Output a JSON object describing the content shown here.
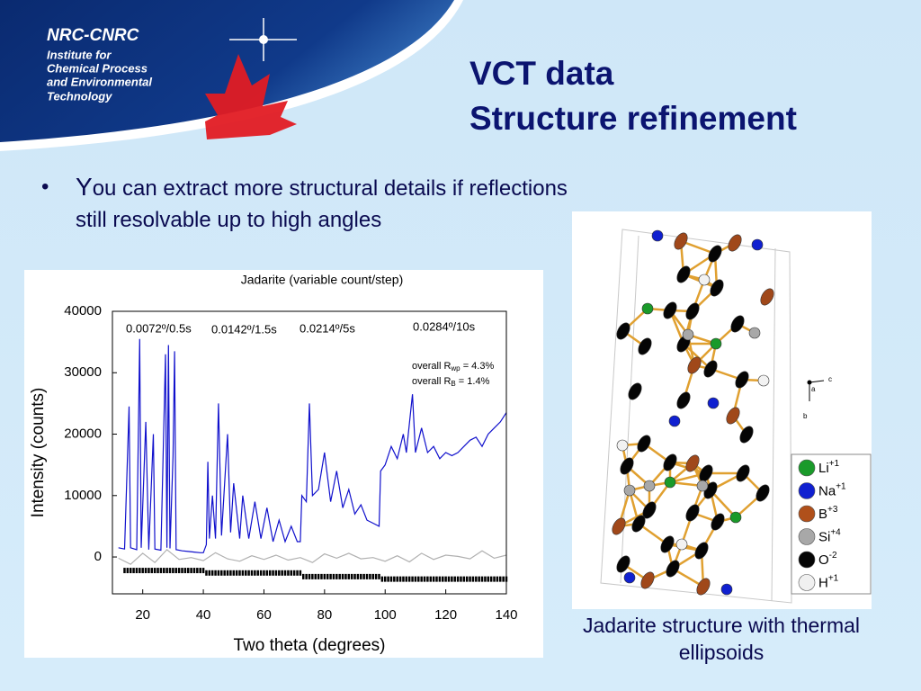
{
  "header": {
    "logo": "NRC-CNRC",
    "institute": [
      "Institute for",
      "Chemical Process",
      "and Environmental",
      "Technology"
    ]
  },
  "title": [
    "VCT data",
    "Structure refinement"
  ],
  "bullets": [
    "You can extract more structural details if reflections still resolvable up to high angles"
  ],
  "chart_data": {
    "type": "line",
    "title": "Jadarite (variable count/step)",
    "xlabel": "Two theta (degrees)",
    "ylabel": "Intensity (counts)",
    "xlim": [
      10,
      140
    ],
    "ylim": [
      -6000,
      40000
    ],
    "xticks": [
      20,
      40,
      60,
      80,
      100,
      120,
      140
    ],
    "yticks": [
      0,
      10000,
      20000,
      30000,
      40000
    ],
    "x": [
      12,
      14,
      15.5,
      16,
      18,
      19,
      19.5,
      21,
      22,
      23.5,
      24,
      26,
      27.5,
      28,
      28.5,
      29,
      30,
      30.5,
      31,
      33,
      35,
      37,
      39,
      40,
      41,
      41.5,
      42,
      43,
      44,
      45,
      46,
      48,
      49,
      50,
      52,
      53,
      55,
      57,
      59,
      61,
      63,
      65,
      67,
      69,
      71,
      72,
      72.5,
      74,
      75,
      76,
      78,
      80,
      82,
      84,
      86,
      88,
      90,
      92,
      94,
      96,
      98,
      98.5,
      100,
      102,
      104,
      106,
      107,
      109,
      110,
      112,
      114,
      116,
      118,
      120,
      122,
      124,
      126,
      128,
      130,
      132,
      134,
      136,
      138,
      140
    ],
    "series": [
      {
        "color": "#1010cc",
        "values": [
          1500,
          1300,
          24500,
          1500,
          1200,
          35500,
          1500,
          22000,
          1200,
          20000,
          1300,
          1100,
          33000,
          1500,
          34500,
          1400,
          16500,
          33500,
          1200,
          1000,
          900,
          800,
          700,
          700,
          2000,
          15500,
          3000,
          10000,
          3000,
          25000,
          3500,
          20000,
          4000,
          12000,
          3000,
          10000,
          3000,
          9000,
          3000,
          8000,
          2500,
          6000,
          2500,
          5000,
          2500,
          2500,
          10000,
          9000,
          25000,
          10000,
          11000,
          17000,
          9000,
          14000,
          8000,
          11000,
          7000,
          8500,
          6000,
          5500,
          5000,
          14000,
          15000,
          18000,
          16000,
          20000,
          17000,
          26500,
          17000,
          21000,
          17000,
          18000,
          16000,
          17000,
          16500,
          17000,
          18000,
          19000,
          19500,
          18000,
          20000,
          21000,
          22000,
          23500
        ]
      }
    ],
    "difference": {
      "color": "#b0b0b0",
      "x": [
        12,
        16,
        20,
        24,
        28,
        32,
        36,
        40,
        44,
        48,
        52,
        56,
        60,
        64,
        68,
        72,
        76,
        80,
        84,
        88,
        92,
        96,
        100,
        104,
        108,
        112,
        116,
        120,
        124,
        128,
        132,
        136,
        140
      ],
      "values": [
        -200,
        -1200,
        600,
        -900,
        1200,
        -400,
        -100,
        -600,
        700,
        -300,
        -700,
        200,
        -400,
        300,
        -500,
        -100,
        -900,
        500,
        -200,
        600,
        -300,
        -100,
        -700,
        200,
        -800,
        600,
        -400,
        300,
        100,
        -300,
        1000,
        -200,
        300
      ]
    },
    "reflections": [
      {
        "y": -2200,
        "x": [
          14,
          15,
          16,
          17,
          18,
          19,
          20,
          21,
          22,
          23,
          24,
          25,
          26,
          27,
          28,
          29,
          30,
          31,
          32,
          33,
          34,
          35,
          36,
          37,
          38,
          39,
          40
        ]
      },
      {
        "y": -2600,
        "x": [
          41,
          42,
          43,
          44,
          45,
          46,
          47,
          48,
          49,
          50,
          51,
          52,
          53,
          54,
          55,
          56,
          57,
          58,
          59,
          60,
          61,
          62,
          63,
          64,
          65,
          66,
          67,
          68,
          69,
          70,
          71,
          72
        ]
      },
      {
        "y": -3200,
        "x": [
          73,
          74,
          75,
          76,
          77,
          78,
          79,
          80,
          81,
          82,
          83,
          84,
          85,
          86,
          87,
          88,
          89,
          90,
          91,
          92,
          93,
          94,
          95,
          96,
          97,
          98
        ]
      },
      {
        "y": -3600,
        "x": [
          99,
          100,
          101,
          102,
          103,
          104,
          105,
          106,
          107,
          108,
          109,
          110,
          111,
          112,
          113,
          114,
          115,
          116,
          117,
          118,
          119,
          120,
          121,
          122,
          123,
          124,
          125,
          126,
          127,
          128,
          129,
          130,
          131,
          132,
          133,
          134,
          135,
          136,
          137,
          138,
          139,
          140
        ]
      }
    ],
    "annotations": [
      "0.0072º/0.5s",
      "0.0142º/1.5s",
      "0.0214º/5s",
      "0.0284º/10s"
    ],
    "fit_stats": [
      {
        "text": "overall R",
        "sub": "wp",
        "rest": " = 4.3%"
      },
      {
        "text": "overall R",
        "sub": "B",
        "rest": " = 1.4%"
      }
    ]
  },
  "figure": {
    "caption": "Jadarite structure with thermal ellipsoids",
    "axes": [
      "a",
      "b",
      "c"
    ],
    "legend": [
      {
        "element": "Li",
        "charge": "+1",
        "color": "#1a9a2a"
      },
      {
        "element": "Na",
        "charge": "+1",
        "color": "#1020d0"
      },
      {
        "element": "B",
        "charge": "+3",
        "color": "#b0501a"
      },
      {
        "element": "Si",
        "charge": "+4",
        "color": "#a8a8a8"
      },
      {
        "element": "O",
        "charge": "-2",
        "color": "#050505"
      },
      {
        "element": "H",
        "charge": "+1",
        "color": "#f0f0f0"
      }
    ]
  }
}
